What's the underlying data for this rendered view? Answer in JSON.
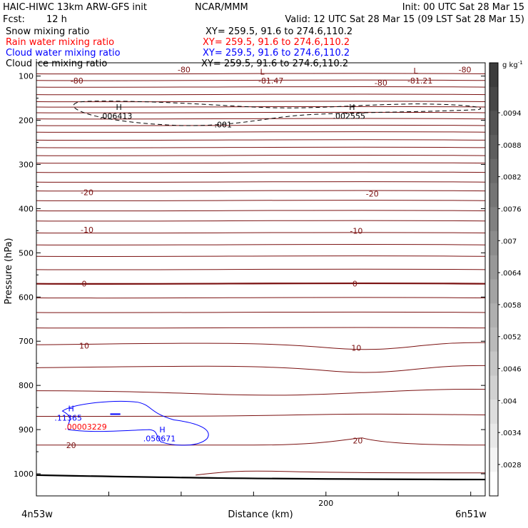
{
  "header": {
    "model": "HAIC-HIWC 13km ARW-GFS init",
    "org": "NCAR/MMM",
    "init": "Init: 00 UTC Sat 28 Mar 15",
    "fcst_label": "Fcst:",
    "fcst_value": "12 h",
    "valid": "Valid: 12 UTC Sat 28 Mar 15 (09 LST Sat 28 Mar 15)"
  },
  "fields": [
    {
      "name": "Snow mixing ratio",
      "xy": "XY= 259.5, 91.6 to 274.6,110.2",
      "color": "#000000"
    },
    {
      "name": "Rain water mixing ratio",
      "xy": "XY= 259.5, 91.6 to 274.6,110.2",
      "color": "#ff0000"
    },
    {
      "name": "Cloud water mixing ratio",
      "xy": "XY= 259.5, 91.6 to 274.6,110.2",
      "color": "#0000ff"
    },
    {
      "name": "Cloud ice mixing ratio",
      "xy": "XY= 259.5, 91.6 to 274.6,110.2",
      "color": "#000000"
    }
  ],
  "chart_data": {
    "type": "line",
    "ylabel": "Pressure (hPa)",
    "xlabel": "Distance (km)",
    "x_endpoint_labels": [
      "4n53w",
      "6n51w"
    ],
    "xlim": [
      0,
      310
    ],
    "ylim": [
      1050,
      70
    ],
    "y_ticks": [
      100,
      200,
      300,
      400,
      500,
      600,
      700,
      800,
      900,
      1000
    ],
    "x_ticks": [
      50,
      100,
      150,
      200,
      250,
      300
    ],
    "x_tick_labels": [
      {
        "value": 200,
        "text": "200"
      }
    ],
    "temperature_isotherms_hPa": [
      95,
      110,
      125,
      142,
      158,
      170,
      183,
      197,
      212,
      227,
      245,
      262,
      280,
      297,
      318,
      340,
      360,
      382,
      405,
      428,
      455,
      482,
      508,
      538,
      570,
      602,
      635,
      670,
      708,
      760,
      812,
      870,
      935
    ],
    "contour_labels": [
      {
        "text": "-80",
        "x": 102,
        "p": 85,
        "color": "#7a1010"
      },
      {
        "text": "-80",
        "x": 28,
        "p": 110,
        "color": "#7a1010"
      },
      {
        "text": "-80",
        "x": 238,
        "p": 115,
        "color": "#7a1010"
      },
      {
        "text": "-80",
        "x": 296,
        "p": 85,
        "color": "#7a1010"
      },
      {
        "text": "-81.47",
        "x": 162,
        "p": 110,
        "color": "#7a1010"
      },
      {
        "text": "-81.21",
        "x": 265,
        "p": 110,
        "color": "#7a1010"
      },
      {
        "text": "L",
        "x": 156,
        "p": 90,
        "color": "#7a1010"
      },
      {
        "text": "L",
        "x": 262,
        "p": 88,
        "color": "#7a1010"
      },
      {
        "text": "-20",
        "x": 35,
        "p": 363,
        "color": "#7a1010"
      },
      {
        "text": "-20",
        "x": 232,
        "p": 366,
        "color": "#7a1010"
      },
      {
        "text": "-10",
        "x": 35,
        "p": 448,
        "color": "#7a1010"
      },
      {
        "text": "-10",
        "x": 221,
        "p": 450,
        "color": "#7a1010"
      },
      {
        "text": "0",
        "x": 33,
        "p": 570,
        "color": "#7a1010"
      },
      {
        "text": "0",
        "x": 220,
        "p": 570,
        "color": "#7a1010"
      },
      {
        "text": "10",
        "x": 33,
        "p": 710,
        "color": "#7a1010"
      },
      {
        "text": "10",
        "x": 221,
        "p": 715,
        "color": "#7a1010"
      },
      {
        "text": "20",
        "x": 24,
        "p": 935,
        "color": "#7a1010"
      },
      {
        "text": "20",
        "x": 222,
        "p": 925,
        "color": "#7a1010"
      },
      {
        "text": "H",
        "x": 57,
        "p": 170,
        "color": "#000000"
      },
      {
        "text": ".006413",
        "x": 55,
        "p": 190,
        "color": "#000000"
      },
      {
        "text": "H",
        "x": 218,
        "p": 170,
        "color": "#000000"
      },
      {
        "text": ".002555",
        "x": 216,
        "p": 190,
        "color": "#000000"
      },
      {
        "text": ".001",
        "x": 129,
        "p": 210,
        "color": "#000000"
      },
      {
        "text": "H",
        "x": 24,
        "p": 852,
        "color": "#0000ff"
      },
      {
        "text": ".11365",
        "x": 22,
        "p": 873,
        "color": "#0000ff"
      },
      {
        "text": "H",
        "x": 87,
        "p": 900,
        "color": "#0000ff"
      },
      {
        "text": ".050671",
        "x": 85,
        "p": 920,
        "color": "#0000ff"
      },
      {
        "text": ".00003229",
        "x": 34,
        "p": 893,
        "color": "#ff0000"
      }
    ],
    "colorbar": {
      "unit_prefix": "g kg",
      "unit_exp": "-1",
      "labels": [
        ".0094",
        ".0088",
        ".0082",
        ".0076",
        ".007",
        ".0064",
        ".0058",
        ".0052",
        ".0046",
        ".004",
        ".0034",
        ".0028"
      ]
    }
  }
}
